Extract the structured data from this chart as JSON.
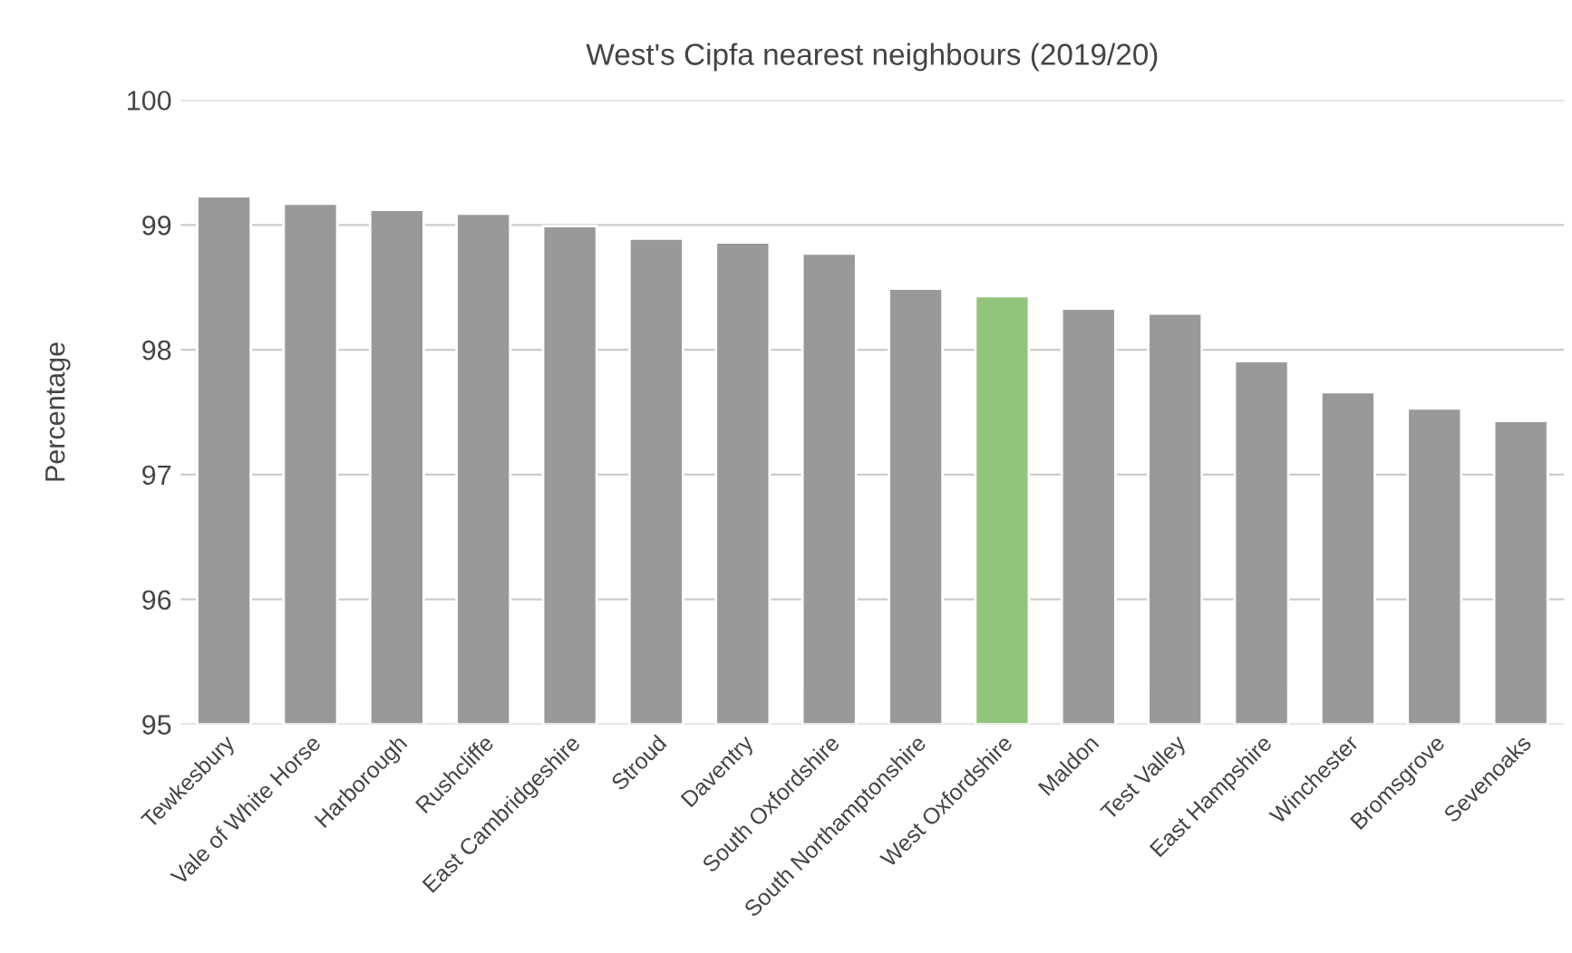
{
  "chart_data": {
    "type": "bar",
    "title": "West's Cipfa nearest neighbours (2019/20)",
    "ylabel": "Percentage",
    "categories": [
      "Tewkesbury",
      "Vale of White Horse",
      "Harborough",
      "Rushcliffe",
      "East Cambridgeshire",
      "Stroud",
      "Daventry",
      "South Oxfordshire",
      "South Northamptonshire",
      "West Oxfordshire",
      "Maldon",
      "Test Valley",
      "East Hampshire",
      "Winchester",
      "Bromsgrove",
      "Sevenoaks"
    ],
    "values": [
      99.23,
      99.17,
      99.12,
      99.09,
      98.99,
      98.89,
      98.86,
      98.77,
      98.49,
      98.43,
      98.33,
      98.29,
      97.91,
      97.66,
      97.53,
      97.43
    ],
    "colors": [
      "#999999",
      "#999999",
      "#999999",
      "#999999",
      "#999999",
      "#999999",
      "#999999",
      "#999999",
      "#999999",
      "#93c47d",
      "#999999",
      "#999999",
      "#999999",
      "#999999",
      "#999999",
      "#999999"
    ],
    "ylim": [
      95,
      100
    ],
    "yticks": [
      95,
      96,
      97,
      98,
      99,
      100
    ],
    "grid": "y",
    "legend": false
  }
}
